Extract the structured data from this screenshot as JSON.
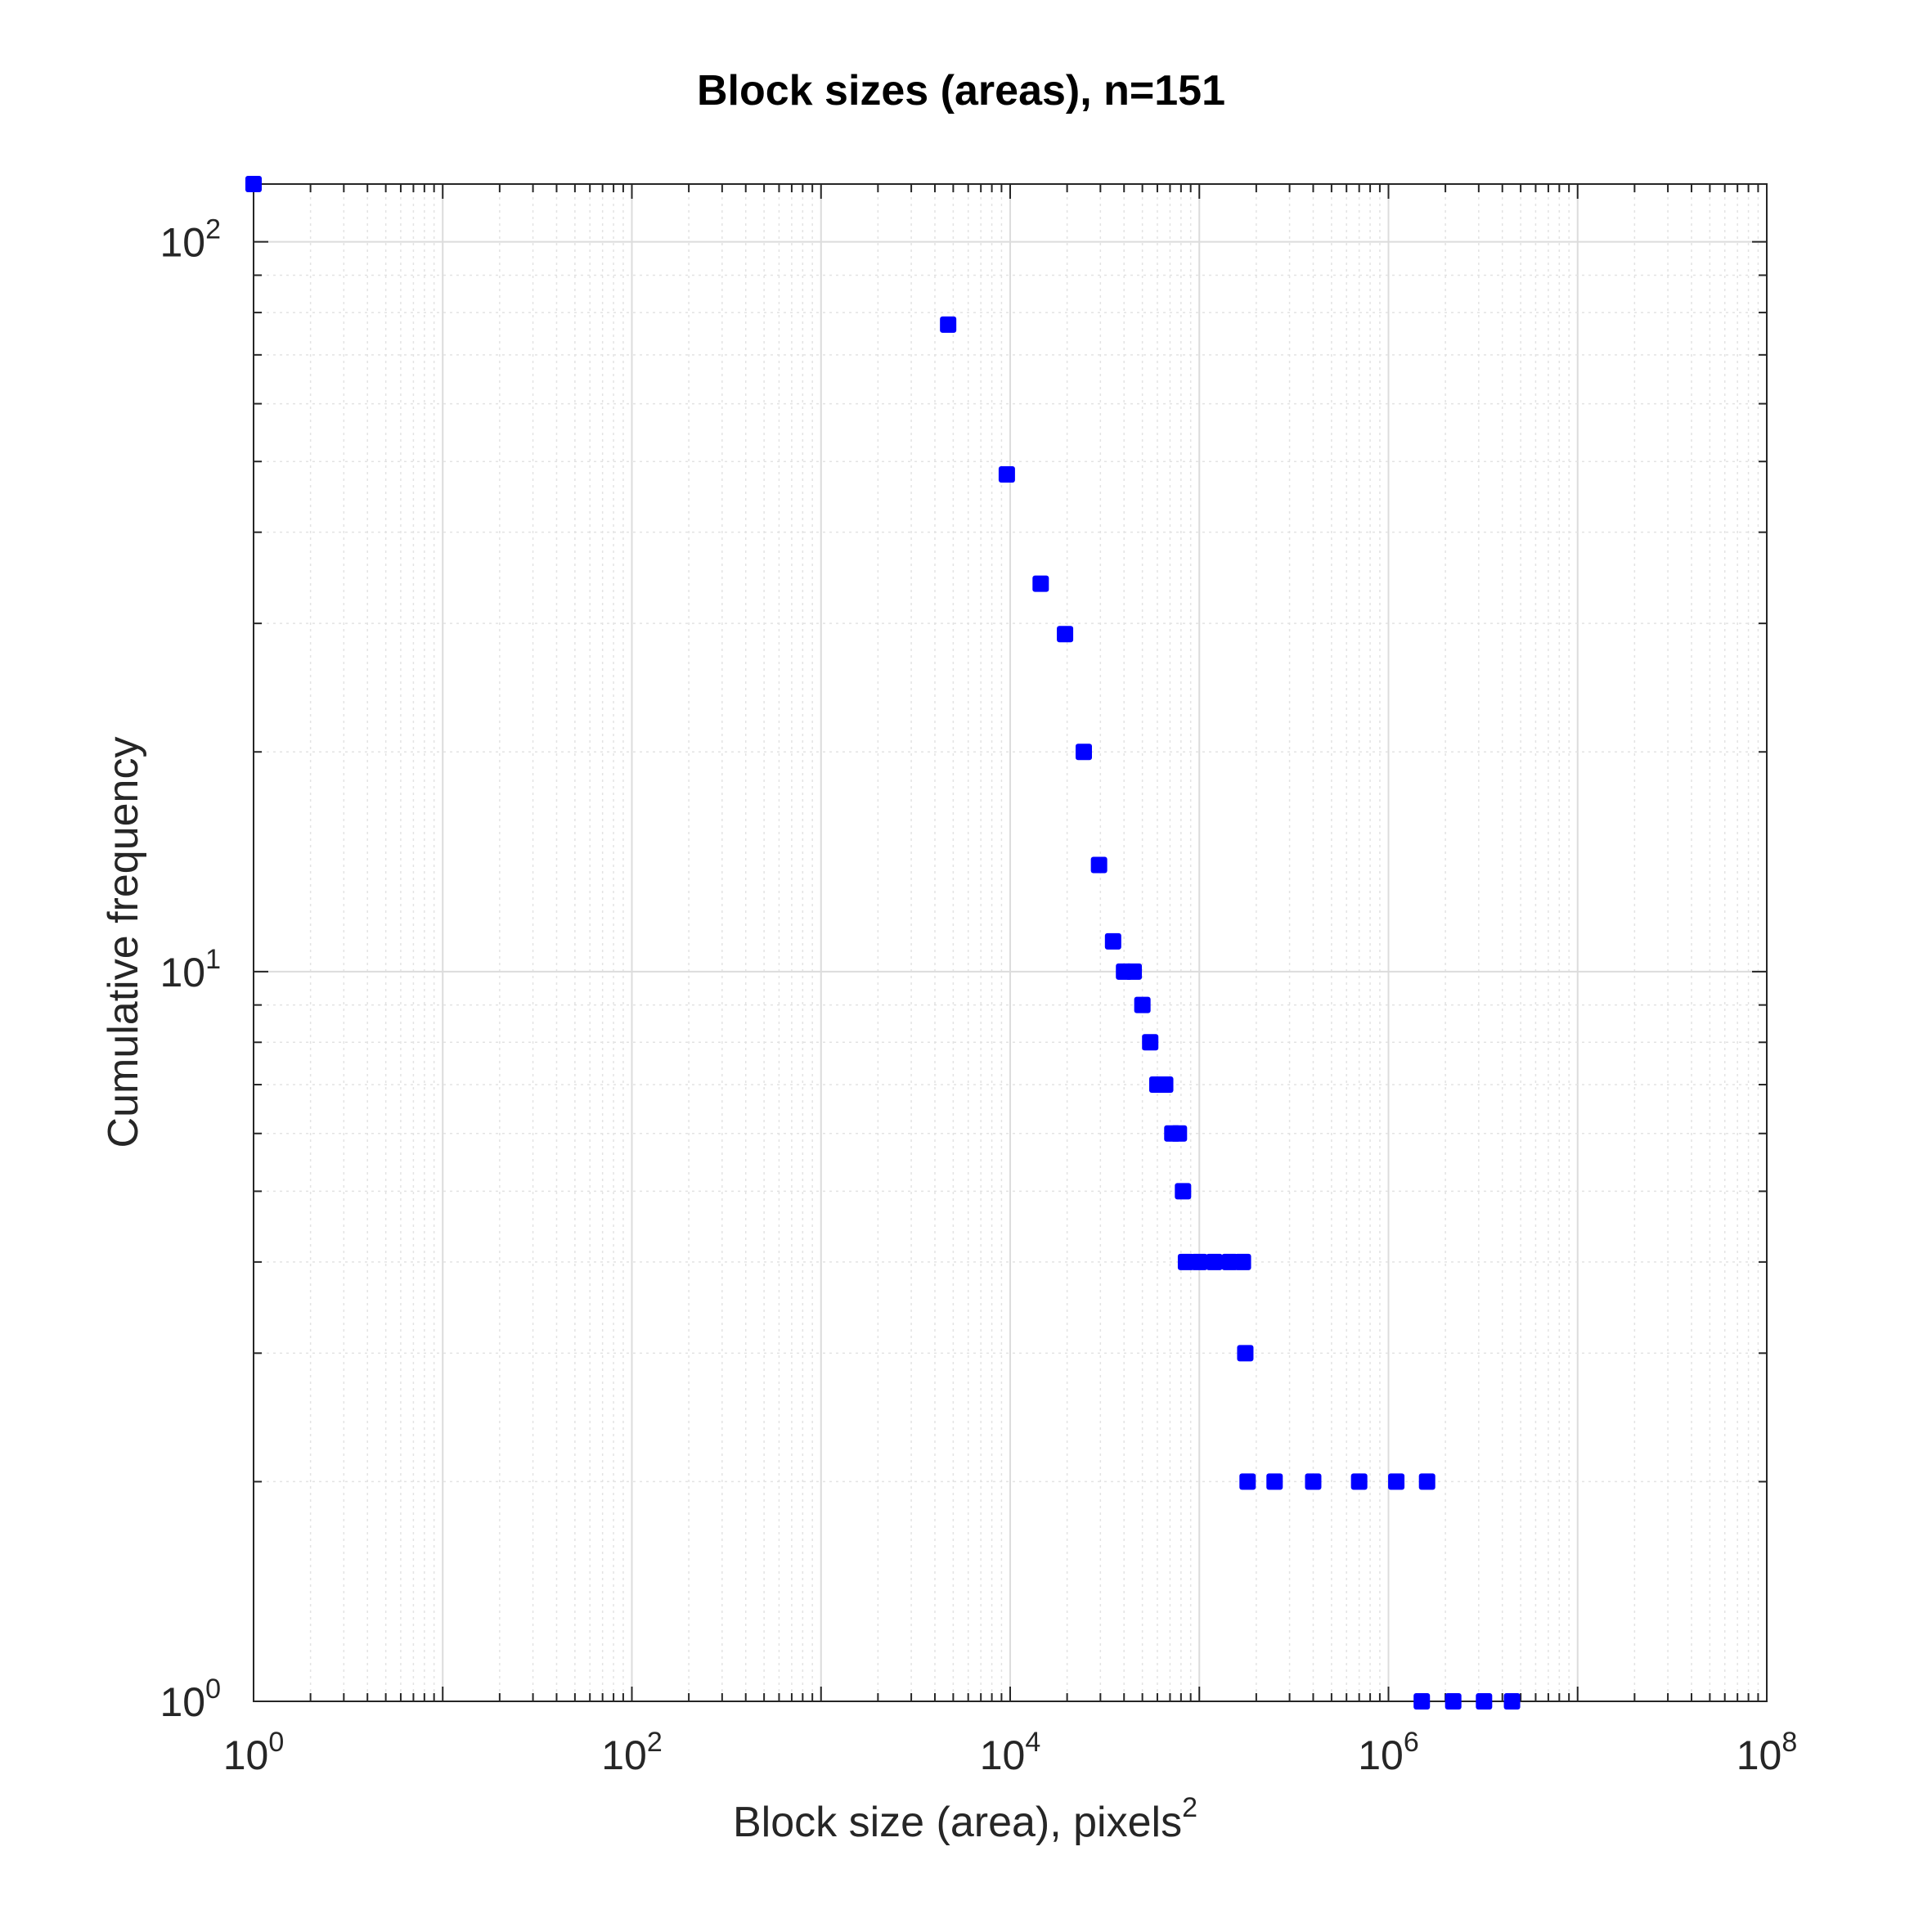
{
  "chart_data": {
    "type": "scatter",
    "title": "Block sizes (areas), n=151",
    "xlabel": "Block size (area), pixels",
    "xlabel_superscript": "2",
    "ylabel": "Cumulative frequency",
    "x_scale": "log",
    "y_scale": "log",
    "xlim": [
      1,
      100000000
    ],
    "ylim": [
      1,
      120
    ],
    "grid": true,
    "minor_grid": true,
    "marker_color": "#0000ff",
    "x_ticks": [
      {
        "base": "10",
        "exp": "0",
        "value": 1
      },
      {
        "base": "10",
        "exp": "2",
        "value": 100
      },
      {
        "base": "10",
        "exp": "4",
        "value": 10000
      },
      {
        "base": "10",
        "exp": "6",
        "value": 1000000
      },
      {
        "base": "10",
        "exp": "8",
        "value": 100000000
      }
    ],
    "y_ticks": [
      {
        "base": "10",
        "exp": "0",
        "value": 1
      },
      {
        "base": "10",
        "exp": "1",
        "value": 10
      },
      {
        "base": "10",
        "exp": "2",
        "value": 100
      }
    ],
    "series": [
      {
        "points": [
          {
            "x": 1,
            "y": 120
          },
          {
            "x": 4700,
            "y": 77
          },
          {
            "x": 9600,
            "y": 48
          },
          {
            "x": 14500,
            "y": 34
          },
          {
            "x": 19500,
            "y": 29
          },
          {
            "x": 24500,
            "y": 20
          },
          {
            "x": 29500,
            "y": 14
          },
          {
            "x": 35000,
            "y": 11
          },
          {
            "x": 40000,
            "y": 10
          },
          {
            "x": 45000,
            "y": 10
          },
          {
            "x": 50000,
            "y": 9
          },
          {
            "x": 55000,
            "y": 8
          },
          {
            "x": 60000,
            "y": 7
          },
          {
            "x": 66000,
            "y": 7
          },
          {
            "x": 72000,
            "y": 6
          },
          {
            "x": 78000,
            "y": 6
          },
          {
            "x": 82000,
            "y": 5
          },
          {
            "x": 85000,
            "y": 4
          },
          {
            "x": 100000,
            "y": 4
          },
          {
            "x": 120000,
            "y": 4
          },
          {
            "x": 145000,
            "y": 4
          },
          {
            "x": 170000,
            "y": 4
          },
          {
            "x": 175000,
            "y": 3
          },
          {
            "x": 180000,
            "y": 2
          },
          {
            "x": 250000,
            "y": 2
          },
          {
            "x": 400000,
            "y": 2
          },
          {
            "x": 700000,
            "y": 2
          },
          {
            "x": 1100000,
            "y": 2
          },
          {
            "x": 1600000,
            "y": 2
          },
          {
            "x": 1500000,
            "y": 1
          },
          {
            "x": 2200000,
            "y": 1
          },
          {
            "x": 3200000,
            "y": 1
          },
          {
            "x": 4500000,
            "y": 1
          }
        ]
      }
    ]
  }
}
